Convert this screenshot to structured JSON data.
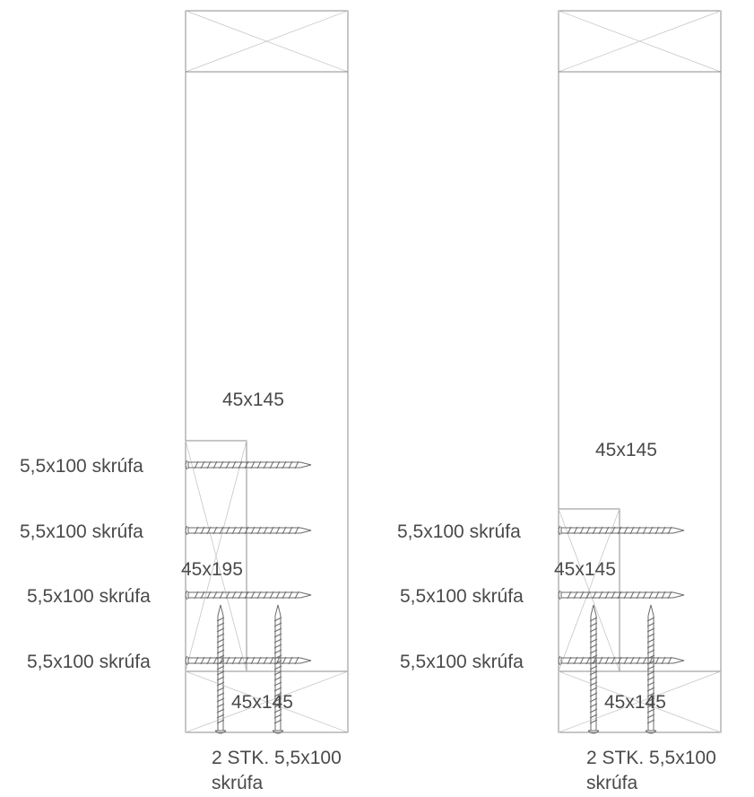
{
  "left_detail": {
    "label_top_board": "45x145",
    "label_middle_block": "45x195",
    "label_bottom_board": "45x145",
    "screw_labels": [
      "5,5x100 skrúfa",
      "5,5x100 skrúfa",
      "5,5x100 skrúfa",
      "5,5x100 skrúfa"
    ],
    "bottom_note_line1": "2 STK. 5,5x100",
    "bottom_note_line2": "skrúfa"
  },
  "right_detail": {
    "label_top_board": "45x145",
    "label_middle_block": "45x145",
    "label_bottom_board": "45x145",
    "screw_labels": [
      "5,5x100 skrúfa",
      "5,5x100 skrúfa",
      "5,5x100 skrúfa"
    ],
    "bottom_note_line1": "2 STK. 5,5x100",
    "bottom_note_line2": "skrúfa"
  },
  "colors": {
    "line": "#8c8c8c",
    "cross": "#c6c6c6",
    "text": "#4a4a4a"
  }
}
